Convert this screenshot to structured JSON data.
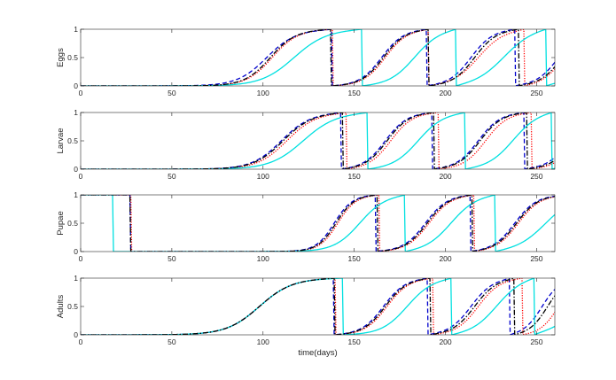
{
  "colors": {
    "red": "#ff0000",
    "blue": "#0000cc",
    "cyan": "#00e0e0",
    "black": "#000000",
    "magenta": "#aa00aa"
  },
  "chart_data": [
    {
      "type": "line",
      "ylabel": "Eggs",
      "xlim": [
        0,
        260
      ],
      "ylim": [
        0,
        1
      ],
      "xticks": [
        0,
        50,
        100,
        150,
        200,
        250
      ],
      "yticks": [
        0,
        0.5,
        1
      ],
      "series": [
        {
          "color": "red",
          "style": "dotted",
          "waves": [
            [
              105,
              7
            ],
            [
              167,
              6
            ],
            [
              218,
              7
            ],
            [
              265,
              6
            ]
          ]
        },
        {
          "color": "blue",
          "style": "dashed",
          "waves": [
            [
              102,
              8
            ],
            [
              165,
              6
            ],
            [
              214,
              6
            ],
            [
              262,
              6
            ]
          ]
        },
        {
          "color": "cyan",
          "style": "solid",
          "waves": [
            [
              117,
              9
            ],
            [
              183,
              7
            ],
            [
              232,
              8
            ],
            [
              290,
              12
            ]
          ]
        },
        {
          "color": "black",
          "style": "dashdot",
          "waves": [
            [
              104,
              7
            ],
            [
              166,
              6
            ],
            [
              216,
              6
            ],
            [
              264,
              6
            ]
          ]
        }
      ]
    },
    {
      "type": "line",
      "ylabel": "Larvae",
      "xlim": [
        0,
        260
      ],
      "ylim": [
        0,
        1
      ],
      "xticks": [
        0,
        50,
        100,
        150,
        200,
        250
      ],
      "yticks": [
        0,
        0.5,
        1
      ],
      "series": [
        {
          "color": "red",
          "style": "dotted",
          "waves": [
            [
              113,
              8
            ],
            [
              170,
              6
            ],
            [
              222,
              6
            ],
            [
              272,
              6
            ]
          ]
        },
        {
          "color": "blue",
          "style": "dashed",
          "waves": [
            [
              110,
              8
            ],
            [
              167,
              6
            ],
            [
              218,
              6
            ],
            [
              268,
              6
            ]
          ]
        },
        {
          "color": "cyan",
          "style": "solid",
          "waves": [
            [
              122,
              9
            ],
            [
              185,
              7
            ],
            [
              237,
              7
            ],
            [
              295,
              12
            ]
          ]
        },
        {
          "color": "black",
          "style": "dashdot",
          "waves": [
            [
              111,
              8
            ],
            [
              168,
              6
            ],
            [
              219,
              6
            ],
            [
              270,
              6
            ]
          ]
        }
      ]
    },
    {
      "type": "line",
      "ylabel": "Pupae",
      "xlim": [
        0,
        260
      ],
      "ylim": [
        0,
        1
      ],
      "xticks": [
        0,
        50,
        100,
        150,
        200,
        250
      ],
      "yticks": [
        0,
        0.5,
        1
      ],
      "series": [
        {
          "color": "red",
          "style": "dotted",
          "waves": [
            [
              -40,
              3
            ],
            [
              141,
              5
            ],
            [
              191,
              6
            ],
            [
              240,
              6
            ]
          ]
        },
        {
          "color": "blue",
          "style": "dashed",
          "waves": [
            [
              -40,
              3
            ],
            [
              139,
              5
            ],
            [
              189,
              6
            ],
            [
              238,
              6
            ]
          ]
        },
        {
          "color": "cyan",
          "style": "solid",
          "waves": [
            [
              -40,
              3
            ],
            [
              153,
              7
            ],
            [
              203,
              7
            ],
            [
              255,
              8
            ]
          ]
        },
        {
          "color": "black",
          "style": "dashdot",
          "waves": [
            [
              -40,
              3
            ],
            [
              140,
              5
            ],
            [
              190,
              6
            ],
            [
              239,
              6
            ]
          ]
        }
      ]
    },
    {
      "type": "line",
      "ylabel": "Adults",
      "xlim": [
        0,
        260
      ],
      "ylim": [
        0,
        1
      ],
      "xticks": [
        0,
        50,
        100,
        150,
        200,
        250
      ],
      "yticks": [
        0,
        0.5,
        1
      ],
      "xlabel": "time(days)",
      "series": [
        {
          "color": "red",
          "style": "dotted",
          "waves": [
            [
              98,
              9
            ],
            [
              168,
              6
            ],
            [
              218,
              6
            ],
            [
              262,
              5
            ]
          ]
        },
        {
          "color": "blue",
          "style": "dashed",
          "waves": [
            [
              98,
              9
            ],
            [
              166,
              6
            ],
            [
              214,
              6
            ],
            [
              253,
              5
            ]
          ]
        },
        {
          "color": "cyan",
          "style": "solid",
          "waves": [
            [
              98,
              9
            ],
            [
              179,
              7
            ],
            [
              228,
              7
            ],
            [
              275,
              9
            ]
          ]
        },
        {
          "color": "black",
          "style": "dashdot",
          "waves": [
            [
              98,
              9
            ],
            [
              167,
              6
            ],
            [
              216,
              6
            ],
            [
              256,
              5
            ]
          ]
        }
      ]
    }
  ]
}
